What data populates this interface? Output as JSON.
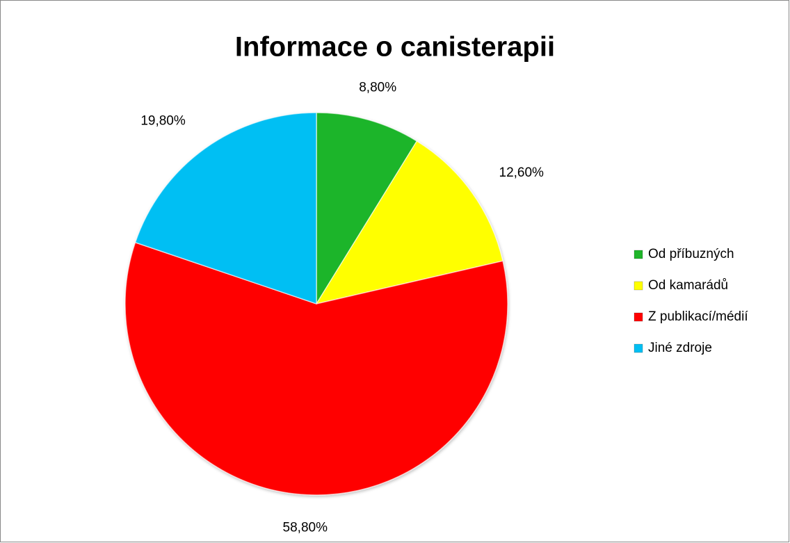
{
  "chart_data": {
    "type": "pie",
    "title": "Informace o canisterapii",
    "categories": [
      "Od příbuzných",
      "Od kamarádů",
      "Z publikací/médií",
      "Jiné zdroje"
    ],
    "values": [
      8.8,
      12.6,
      58.8,
      19.8
    ],
    "value_labels": [
      "8,80%",
      "12,60%",
      "58,80%",
      "19,80%"
    ],
    "colors": [
      "#1fb52a",
      "#ffff00",
      "#ff0000",
      "#00bff3"
    ],
    "legend": "right"
  }
}
